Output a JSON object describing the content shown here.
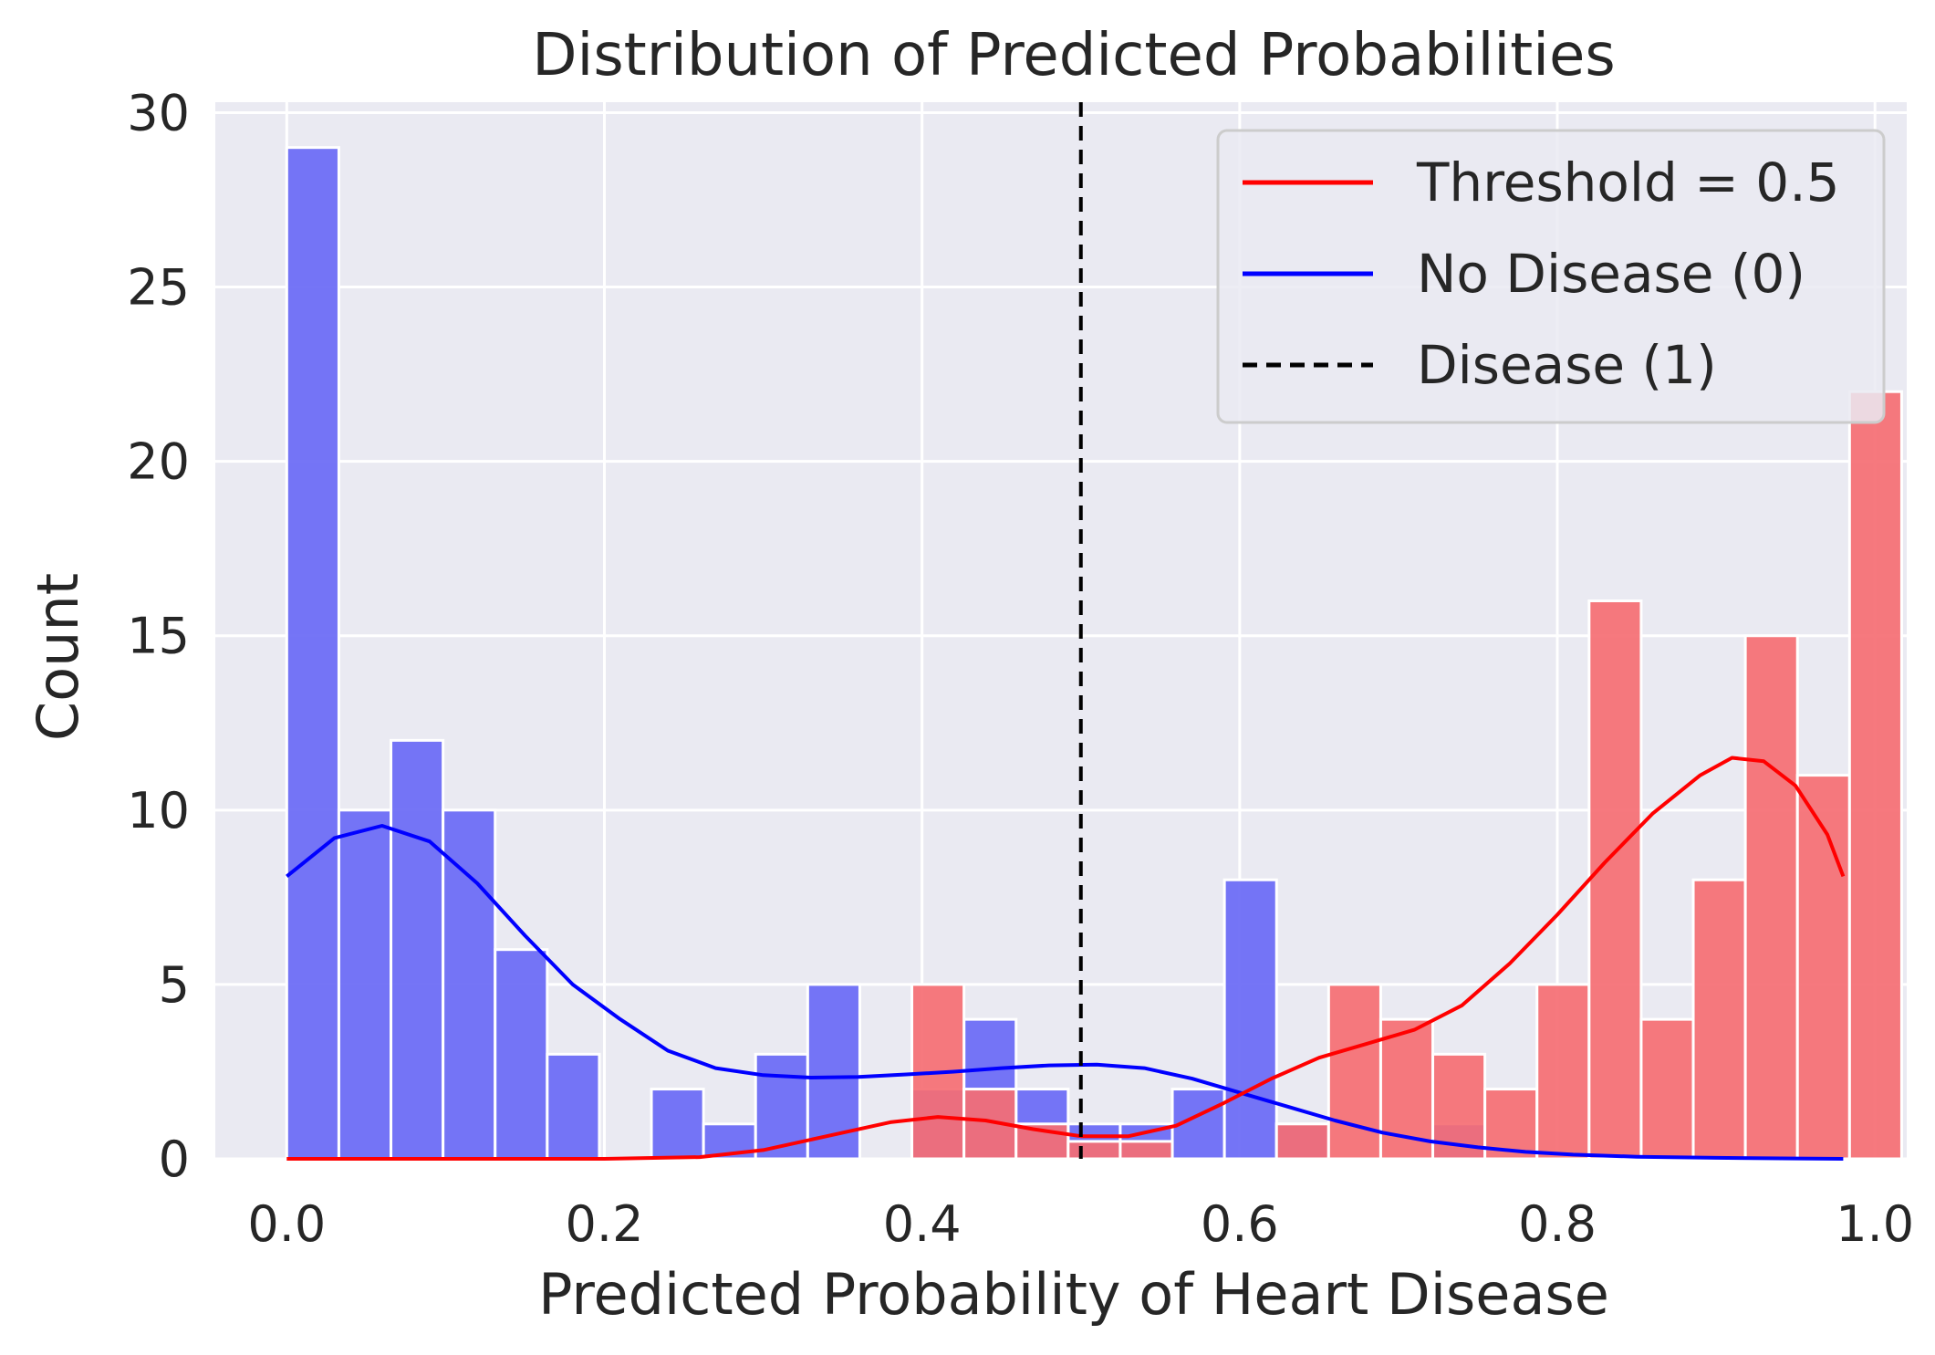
{
  "chart_data": {
    "type": "bar",
    "title": "Distribution of Predicted Probabilities",
    "xlabel": "Predicted Probability of Heart Disease",
    "ylabel": "Count",
    "xlim": [
      -0.045,
      1.02
    ],
    "ylim": [
      0,
      30.3
    ],
    "xticks": [
      "0.0",
      "0.2",
      "0.4",
      "0.6",
      "0.8",
      "1.0"
    ],
    "yticks": [
      "0",
      "5",
      "10",
      "15",
      "20",
      "25",
      "30"
    ],
    "grid": true,
    "background": "#eaeaf2",
    "bins": {
      "start": 0.0,
      "width": 0.0328
    },
    "series": [
      {
        "color_fill": "#6e6ef5",
        "color_line": "#0000ff",
        "counts": [
          29,
          10,
          12,
          10,
          6,
          3,
          0,
          2,
          1,
          3,
          5,
          0,
          2,
          4,
          2,
          1,
          1,
          2,
          8,
          1,
          0,
          0,
          1,
          0,
          0,
          0,
          0,
          0,
          0,
          0
        ],
        "kde": [
          [
            0.0,
            8.1
          ],
          [
            0.03,
            9.2
          ],
          [
            0.06,
            9.55
          ],
          [
            0.09,
            9.1
          ],
          [
            0.12,
            7.9
          ],
          [
            0.15,
            6.4
          ],
          [
            0.18,
            5.0
          ],
          [
            0.21,
            4.0
          ],
          [
            0.24,
            3.1
          ],
          [
            0.27,
            2.6
          ],
          [
            0.3,
            2.4
          ],
          [
            0.33,
            2.33
          ],
          [
            0.36,
            2.35
          ],
          [
            0.39,
            2.42
          ],
          [
            0.42,
            2.5
          ],
          [
            0.45,
            2.6
          ],
          [
            0.48,
            2.68
          ],
          [
            0.51,
            2.7
          ],
          [
            0.54,
            2.6
          ],
          [
            0.57,
            2.3
          ],
          [
            0.6,
            1.9
          ],
          [
            0.63,
            1.5
          ],
          [
            0.66,
            1.1
          ],
          [
            0.69,
            0.75
          ],
          [
            0.72,
            0.5
          ],
          [
            0.75,
            0.33
          ],
          [
            0.78,
            0.2
          ],
          [
            0.81,
            0.12
          ],
          [
            0.85,
            0.06
          ],
          [
            0.9,
            0.03
          ],
          [
            0.95,
            0.01
          ],
          [
            0.98,
            0.0
          ]
        ]
      },
      {
        "color_fill": "#f56e73",
        "color_line": "#ff0000",
        "counts": [
          0,
          0,
          0,
          0,
          0,
          0,
          0,
          0,
          0,
          0,
          0,
          0,
          5,
          2,
          1,
          0.5,
          0.5,
          0,
          0,
          1,
          5,
          4,
          3,
          2,
          5,
          16,
          4,
          8,
          15,
          11,
          22
        ],
        "kde": [
          [
            0.0,
            0.0
          ],
          [
            0.2,
            0.0
          ],
          [
            0.26,
            0.05
          ],
          [
            0.3,
            0.25
          ],
          [
            0.34,
            0.65
          ],
          [
            0.38,
            1.05
          ],
          [
            0.41,
            1.2
          ],
          [
            0.44,
            1.1
          ],
          [
            0.47,
            0.85
          ],
          [
            0.5,
            0.65
          ],
          [
            0.53,
            0.65
          ],
          [
            0.56,
            0.95
          ],
          [
            0.59,
            1.6
          ],
          [
            0.62,
            2.3
          ],
          [
            0.65,
            2.9
          ],
          [
            0.68,
            3.3
          ],
          [
            0.71,
            3.7
          ],
          [
            0.74,
            4.4
          ],
          [
            0.77,
            5.6
          ],
          [
            0.8,
            7.0
          ],
          [
            0.83,
            8.5
          ],
          [
            0.86,
            9.9
          ],
          [
            0.89,
            11.0
          ],
          [
            0.91,
            11.5
          ],
          [
            0.93,
            11.4
          ],
          [
            0.95,
            10.7
          ],
          [
            0.97,
            9.3
          ],
          [
            0.98,
            8.1
          ]
        ]
      }
    ],
    "threshold": 0.5,
    "legend": {
      "placement": "top-right",
      "entries": [
        {
          "label": "Threshold = 0.5",
          "color": "#ff0000",
          "style": "solid"
        },
        {
          "label": "No Disease (0)",
          "color": "#0000ff",
          "style": "solid"
        },
        {
          "label": "Disease (1)",
          "color": "#000000",
          "style": "dashed"
        }
      ]
    }
  }
}
